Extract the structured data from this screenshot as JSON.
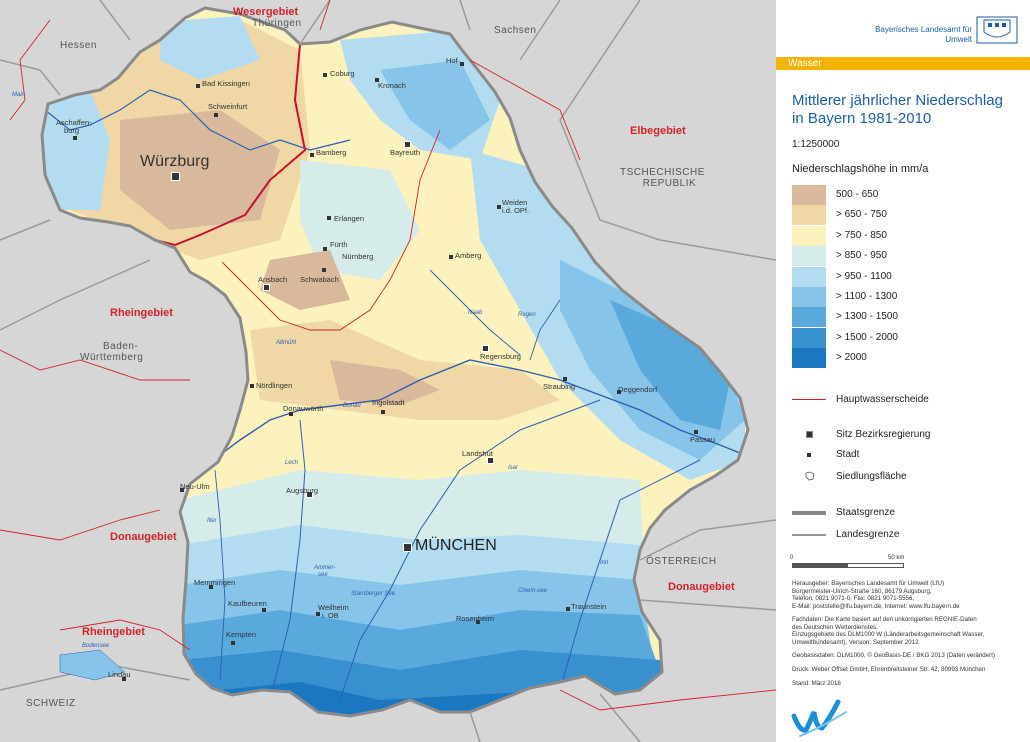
{
  "header": {
    "agency": "Bayerisches Landesamt für Umwelt",
    "section": "Wasser"
  },
  "title": {
    "line1": "Mittlerer jährlicher Niederschlag",
    "line2": "in Bayern 1981-2010",
    "scale": "1:1250000",
    "legend_title": "Niederschlagshöhe in mm/a"
  },
  "legend": {
    "classes": [
      {
        "label": "500 -  650",
        "color": "#d9b99c"
      },
      {
        "label": ">  650 -  750",
        "color": "#efd7a6"
      },
      {
        "label": ">  750 -  850",
        "color": "#fbf2bd"
      },
      {
        "label": ">  850 -  950",
        "color": "#d6ecea"
      },
      {
        "label": ">  950 - 1100",
        "color": "#b3dcf0"
      },
      {
        "label": "> 1100 - 1300",
        "color": "#86c4e9"
      },
      {
        "label": "> 1300 - 1500",
        "color": "#5aa9dd"
      },
      {
        "label": "> 1500 - 2000",
        "color": "#3890cf"
      },
      {
        "label": "> 2000",
        "color": "#1b78c0"
      }
    ],
    "symbols": {
      "hauptwasserscheide": "Hauptwasserscheide",
      "sitz": "Sitz Bezirksregierung",
      "stadt": "Stadt",
      "siedlung": "Siedlungsfläche",
      "staatsgrenze": "Staatsgrenze",
      "landesgrenze": "Landesgrenze"
    },
    "scalebar": {
      "zero": "0",
      "end": "50 km"
    }
  },
  "imprint": {
    "herausgeber": [
      "Herausgeber: Bayerisches Landesamt für Umwelt (LfU)",
      "Bürgermeister-Ulrich-Straße 160, 86179 Augsburg,",
      "Telefon: 0821 9071-0, Fax: 0821 9071-5556,",
      "E-Mail: poststelle@lfu.bayern.de, Internet: www.lfu.bayern.de"
    ],
    "fachdaten": [
      "Fachdaten: Die Karte basiert auf den unkorrigierten REGNIE-Daten",
      "des Deutschen Wetterdienstes.",
      "Einzugsgebiete des DLM1000 W (Länderarbeitsgemeinschaft Wasser,",
      "Umweltbundesamt), Version: September 2012"
    ],
    "geobasis": "Geobasisdaten: DLM1000, © GeoBasis-DE / BKG 2013 (Daten verändert)",
    "druck": "Druck: Weber Offset GmbH, Ehrenbreitsteiner Str. 42, 80993 München",
    "stand": "Stand: März 2018"
  },
  "map": {
    "regions": {
      "weser": "Wesergebiet",
      "elbe": "Elbegebiet",
      "rhein_w": "Rheingebiet",
      "donau_w": "Donaugebiet",
      "rhein_sw": "Rheingebiet",
      "donau_se": "Donaugebiet"
    },
    "countries": {
      "hessen": "Hessen",
      "thueringen": "Thüringen",
      "sachsen": "Sachsen",
      "cz1": "TSCHECHISCHE",
      "cz2": "REPUBLIK",
      "bw1": "Baden-",
      "bw2": "Württemberg",
      "at": "ÖSTERREICH",
      "ch": "SCHWEIZ"
    },
    "capitals": {
      "wuerzburg": "Würzburg",
      "muenchen": "MÜNCHEN",
      "bayreuth": "Bayreuth",
      "ansbach": "Ansbach",
      "regensburg": "Regensburg",
      "landshut": "Landshut",
      "augsburg": "Augsburg"
    },
    "towns": {
      "bad_kissingen": "Bad Kissingen",
      "schweinfurt": "Schweinfurt",
      "aschaffenburg1": "Aschaffen-",
      "aschaffenburg2": "burg",
      "coburg": "Coburg",
      "kronach": "Kronach",
      "hof": "Hof",
      "bamberg": "Bamberg",
      "erlangen": "Erlangen",
      "fuerth": "Fürth",
      "nuernberg": "Nürnberg",
      "schwabach": "Schwabach",
      "weiden1": "Weiden",
      "weiden2": "i.d. OPf.",
      "amberg": "Amberg",
      "straubing": "Straubing",
      "deggendorf": "Deggendorf",
      "passau": "Passau",
      "noerdlingen": "Nördlingen",
      "donauwoerth": "Donauwörth",
      "ingolstadt": "Ingolstadt",
      "neu_ulm": "Neu-Ulm",
      "memmingen": "Memmingen",
      "kaufbeuren": "Kaufbeuren",
      "kempten": "Kempten",
      "weilheim1": "Weilheim",
      "weilheim2": "i. OB",
      "rosenheim": "Rosenheim",
      "traunstein": "Traunstein",
      "lindau": "Lindau"
    },
    "rivers": {
      "main": "Main",
      "donau": "Donau",
      "isar": "Isar",
      "inn": "Inn",
      "lech": "Lech",
      "iller": "Iller",
      "regen": "Regen",
      "naab": "Naab",
      "altmuehl": "Altmühl",
      "ammersee1": "Ammer-",
      "ammersee2": "see",
      "starnberger": "Starnberger See",
      "chiemsee": "Chiem-see",
      "bodensee": "Bodensee"
    }
  }
}
